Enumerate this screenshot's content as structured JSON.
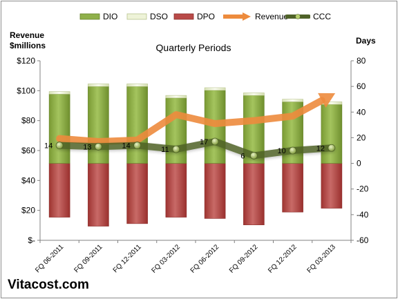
{
  "chart_data": {
    "type": "bar",
    "title": "Quarterly Periods",
    "left_axis_title": [
      "Revenue",
      "$millions"
    ],
    "right_axis_title": "Days",
    "categories": [
      "FQ 06-2011",
      "FQ 09-2011",
      "FQ 12-2011",
      "FQ 03-2012",
      "FQ 06-2012",
      "FQ 09-2012",
      "FQ 12-2012",
      "FQ 03-2013"
    ],
    "left_axis": {
      "min": 0,
      "max": 120,
      "ticks": [
        "$-",
        "$20",
        "$40",
        "$60",
        "$80",
        "$100",
        "$120"
      ]
    },
    "right_axis": {
      "min": -60,
      "max": 80,
      "ticks": [
        "-60",
        "-40",
        "-20",
        "0",
        "20",
        "40",
        "60",
        "80"
      ]
    },
    "series": [
      {
        "name": "DIO",
        "axis": "days",
        "kind": "stacked-bar",
        "values": [
          54,
          60,
          60,
          51,
          57,
          53,
          48,
          46
        ]
      },
      {
        "name": "DSO",
        "axis": "days",
        "kind": "stacked-bar",
        "values": [
          2,
          2,
          2,
          2,
          2,
          2,
          2,
          2
        ]
      },
      {
        "name": "DPO",
        "axis": "days",
        "kind": "negative-bar",
        "values": [
          -42,
          -49,
          -47,
          -42,
          -43,
          -48,
          -38,
          -35
        ]
      },
      {
        "name": "Revenue",
        "axis": "revenue",
        "kind": "line",
        "values": [
          68,
          66,
          67,
          84,
          78,
          80,
          83,
          97
        ]
      },
      {
        "name": "CCC",
        "axis": "days",
        "kind": "line",
        "values": [
          14,
          13,
          14,
          11,
          17,
          6,
          10,
          12
        ]
      }
    ],
    "ccc_labels": [
      "14",
      "13",
      "14",
      "11",
      "17",
      "6",
      "10",
      "12"
    ],
    "colors": {
      "DIO": "#8fb04a",
      "DSO": "#eef3d8",
      "DPO": "#b94a48",
      "Revenue": "#ed8b3d",
      "CCC": "#4f6228",
      "plot_bg": "#ffffff"
    },
    "grid": false,
    "legend_position": "top"
  },
  "watermark": "Vitacost.com"
}
